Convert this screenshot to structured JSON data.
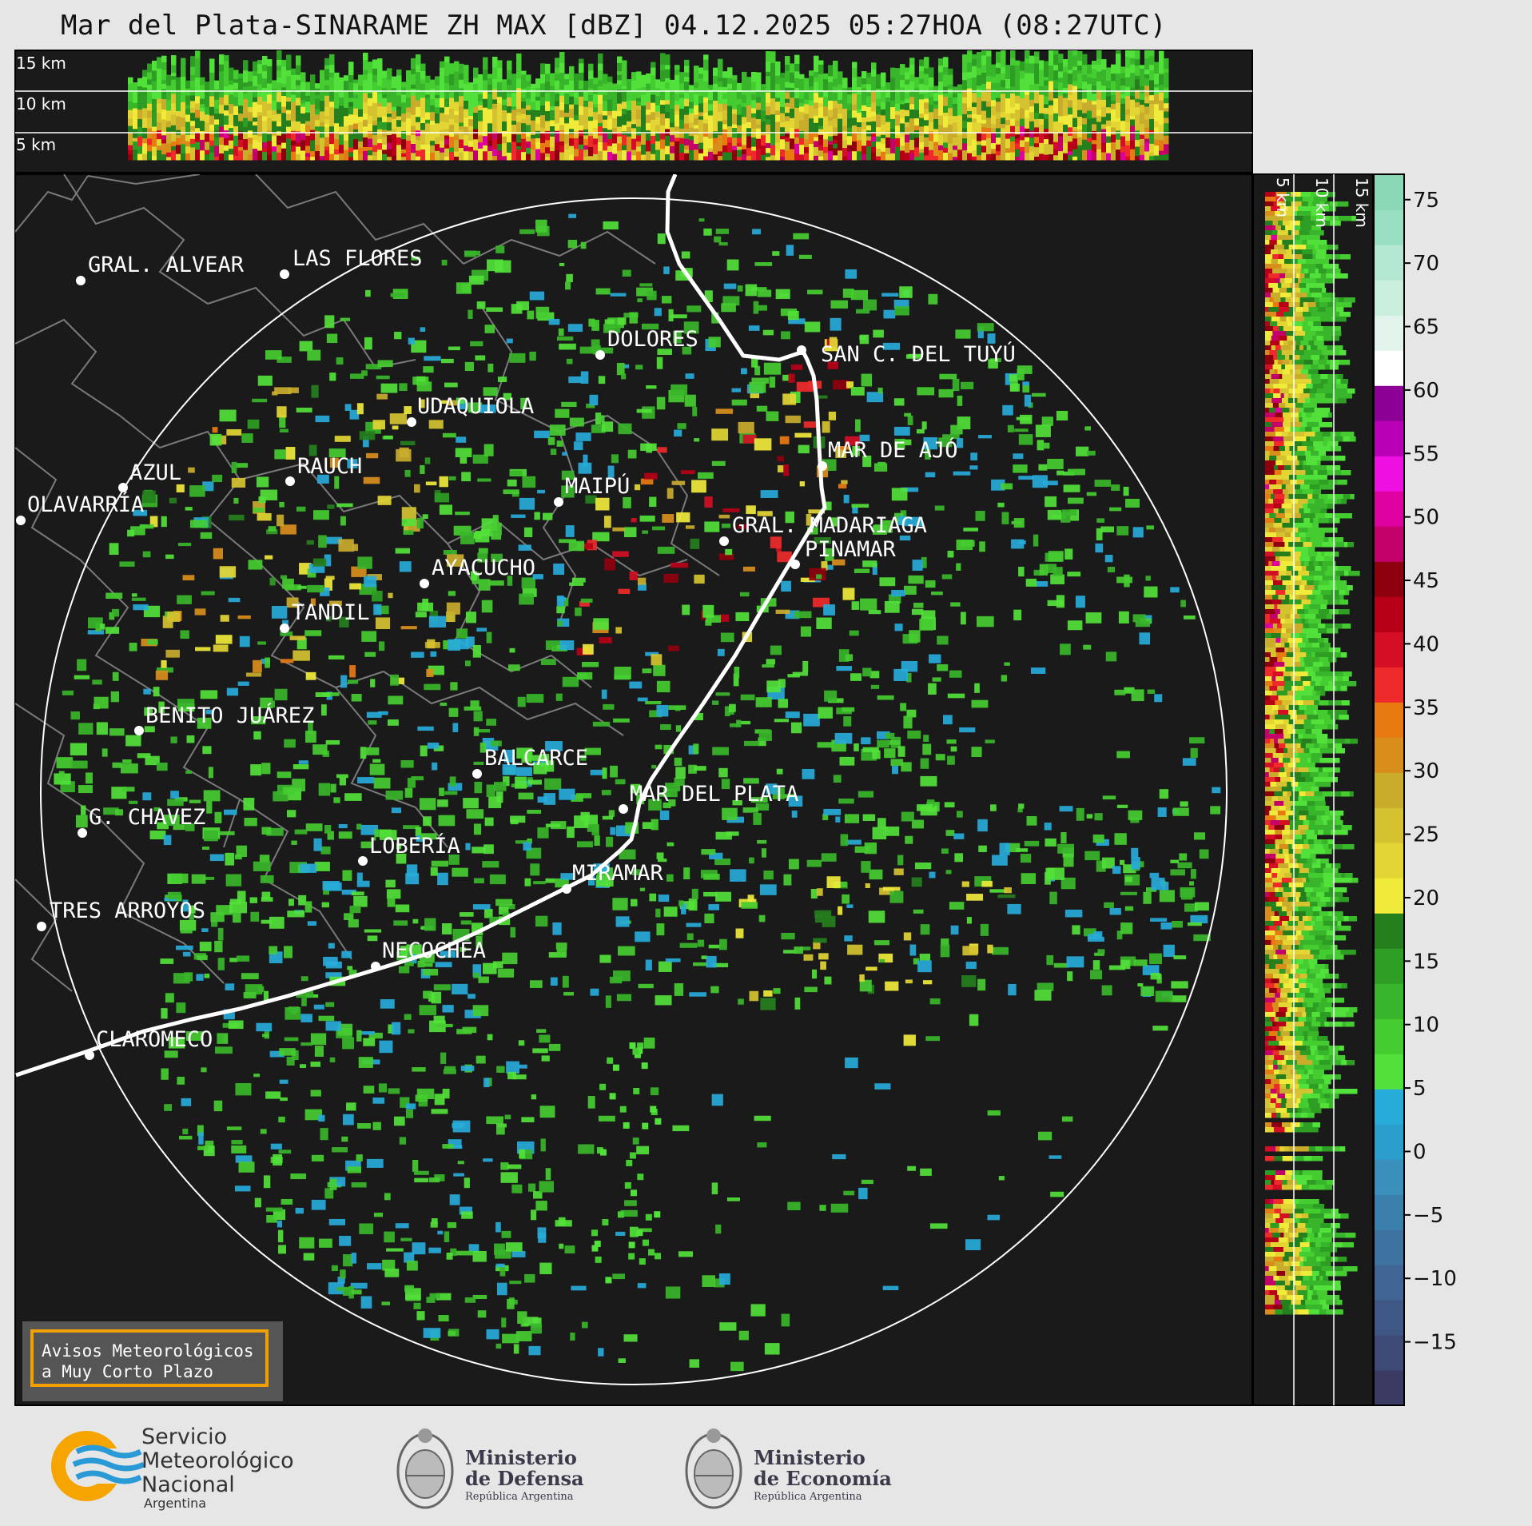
{
  "title": "Mar del Plata-SINARAME ZH MAX [dBZ] 04.12.2025 05:27HOA (08:27UTC)",
  "top_panel": {
    "height_labels": [
      "15 km",
      "10 km",
      "5 km"
    ]
  },
  "side_panel": {
    "height_labels": [
      "5 km",
      "10 km",
      "15 km"
    ]
  },
  "colorbar": {
    "unit": "dBZ",
    "ticks": [
      "75",
      "70",
      "65",
      "60",
      "55",
      "50",
      "45",
      "40",
      "35",
      "30",
      "25",
      "20",
      "15",
      "10",
      "5",
      "0",
      "−5",
      "−10",
      "−15"
    ],
    "range": [
      -20,
      77
    ],
    "colors": [
      "#3a3a63",
      "#3d4a75",
      "#3f5785",
      "#406493",
      "#3e72a0",
      "#3b80ad",
      "#3a8fbb",
      "#2c9ecb",
      "#27abd9",
      "#52e13a",
      "#45cc31",
      "#38b52a",
      "#2e9d23",
      "#257f1c",
      "#f0ea3a",
      "#e3d634",
      "#d5c230",
      "#c9ac2c",
      "#d98e1c",
      "#e87a12",
      "#ee2a2a",
      "#d40f25",
      "#b70017",
      "#8f000e",
      "#c4006a",
      "#df00a0",
      "#ee10e0",
      "#b900b6",
      "#8d0096",
      "#ffffff",
      "#e2f4ec",
      "#c9eedc",
      "#b4e8d2",
      "#99dfc2",
      "#8bd8b6"
    ]
  },
  "cities": [
    {
      "name": "GRAL. ALVEAR"
    },
    {
      "name": "LAS FLORES"
    },
    {
      "name": "DOLORES"
    },
    {
      "name": "SAN C. DEL TUYÚ"
    },
    {
      "name": "UDAQUIOLA"
    },
    {
      "name": "MAR DE AJÓ"
    },
    {
      "name": "AZUL"
    },
    {
      "name": "RAUCH"
    },
    {
      "name": "OLAVARRÍA"
    },
    {
      "name": "MAIPÚ"
    },
    {
      "name": "GRAL. MADARIAGA"
    },
    {
      "name": "PINAMAR"
    },
    {
      "name": "AYACUCHO"
    },
    {
      "name": "TANDIL"
    },
    {
      "name": "BENITO JUÁREZ"
    },
    {
      "name": "BALCARCE"
    },
    {
      "name": "MAR DEL PLATA"
    },
    {
      "name": "G. CHAVEZ"
    },
    {
      "name": "LOBERÍA"
    },
    {
      "name": "MIRAMAR"
    },
    {
      "name": "TRES ARROYOS"
    },
    {
      "name": "NECOCHEA"
    },
    {
      "name": "CLAROMECO"
    }
  ],
  "banner": {
    "line1": "Avisos Meteorológicos",
    "line2": "a Muy Corto Plazo"
  },
  "logos": {
    "smn": {
      "line1": "Servicio",
      "line2": "Meteorológico",
      "line3": "Nacional",
      "line4": "Argentina"
    },
    "defensa": {
      "line1": "Ministerio",
      "line2": "de Defensa",
      "line3": "República Argentina"
    },
    "economia": {
      "line1": "Ministerio",
      "line2": "de Economía",
      "line3": "República Argentina"
    }
  },
  "colors": {
    "background": "#1a1a1a",
    "page": "#e6e6e6",
    "coastline": "#ffffff",
    "boundaries": "#7a7a7a",
    "banner_border": "#f2a000"
  }
}
